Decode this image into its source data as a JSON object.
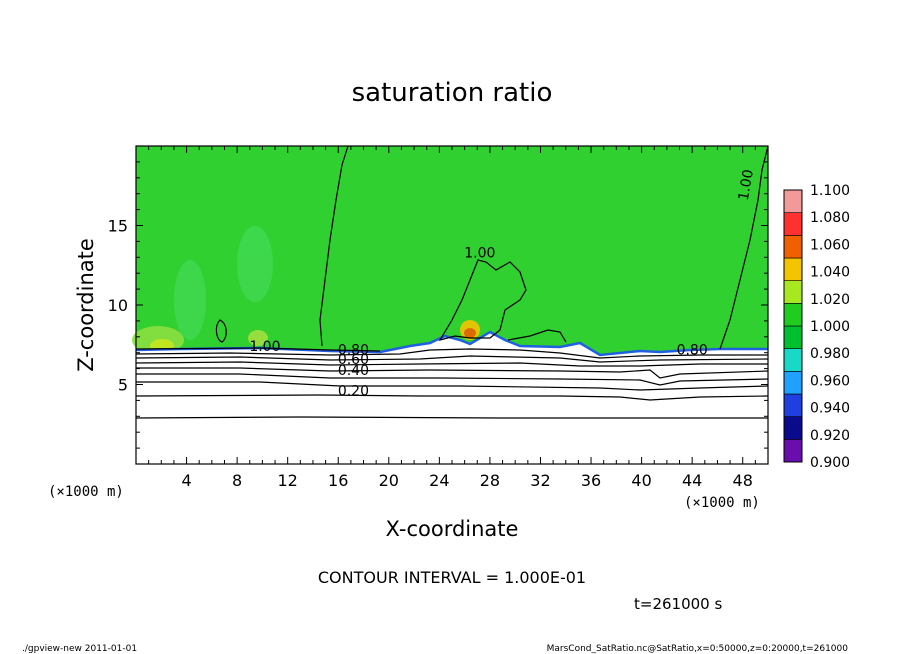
{
  "chart_data": {
    "type": "heatmap",
    "title": "saturation ratio",
    "xlabel": "X-coordinate",
    "ylabel": "Z-coordinate",
    "x_unit_label": "(×1000 m)",
    "y_unit_label": "(×1000 m)",
    "xlim": [
      0,
      50
    ],
    "ylim": [
      0,
      20
    ],
    "x_ticks": [
      "4",
      "8",
      "12",
      "16",
      "20",
      "24",
      "28",
      "32",
      "36",
      "40",
      "44",
      "48"
    ],
    "x_tick_values": [
      4,
      8,
      12,
      16,
      20,
      24,
      28,
      32,
      36,
      40,
      44,
      48
    ],
    "y_ticks": [
      "5",
      "10",
      "15"
    ],
    "y_tick_values": [
      5,
      10,
      15
    ],
    "colorbar": {
      "levels": [
        "0.900",
        "0.920",
        "0.940",
        "0.960",
        "0.980",
        "1.000",
        "1.020",
        "1.040",
        "1.060",
        "1.080",
        "1.100"
      ],
      "colors": [
        "#6a0dad",
        "#0a0a8c",
        "#1f3fe0",
        "#20a0ff",
        "#18d8c8",
        "#00c030",
        "#20cc20",
        "#a8e820",
        "#f4c400",
        "#f06000",
        "#ff3030",
        "#f29a9a"
      ]
    },
    "background_color": "#30d030",
    "lower_region_color": "#ffffff",
    "contour_labels": [
      {
        "text": "1.00",
        "x": 10.2,
        "z": 7.1
      },
      {
        "text": "0.80",
        "x": 17.2,
        "z": 6.9
      },
      {
        "text": "0.60",
        "x": 17.2,
        "z": 6.3
      },
      {
        "text": "0.40",
        "x": 17.2,
        "z": 5.6
      },
      {
        "text": "0.20",
        "x": 17.2,
        "z": 4.3
      },
      {
        "text": "0.80",
        "x": 44.0,
        "z": 6.9
      },
      {
        "text": "1.00",
        "x": 27.2,
        "z": 13.0
      },
      {
        "text": "1.00",
        "x": 48.6,
        "z": 17.5
      }
    ],
    "contour_interval": "CONTOUR INTERVAL = 1.000E-01",
    "time_label": "t=261000 s"
  },
  "footer": {
    "left": "./gpview-new  2011-01-01",
    "right": "MarsCond_SatRatio.nc@SatRatio,x=0:50000,z=0:20000,t=261000"
  }
}
